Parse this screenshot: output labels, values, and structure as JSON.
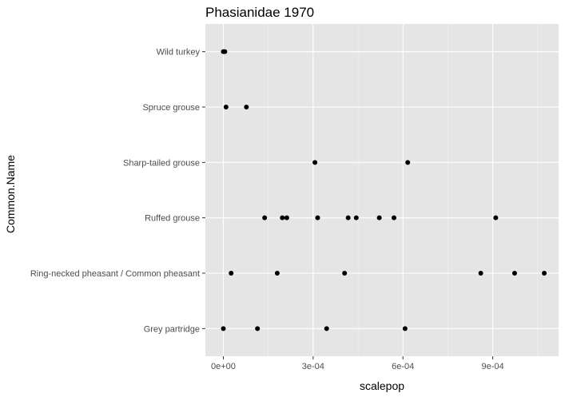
{
  "chart_data": {
    "type": "scatter",
    "title": "Phasianidae 1970",
    "xlabel": "scalepop",
    "ylabel": "Common.Name",
    "xlim": [
      -6e-05,
      0.00112
    ],
    "x_ticks": [
      0,
      0.0003,
      0.0006,
      0.0009
    ],
    "x_tick_labels": [
      "0e+00",
      "3e-04",
      "6e-04",
      "9e-04"
    ],
    "categories": [
      "Wild turkey",
      "Spruce grouse",
      "Sharp-tailed grouse",
      "Ruffed grouse",
      "Ring-necked pheasant / Common pheasant",
      "Grey partridge"
    ],
    "grid": true,
    "panel_color": "#e5e5e5",
    "point_color": "#000000",
    "points": [
      {
        "category": "Wild turkey",
        "x": 0.0
      },
      {
        "category": "Wild turkey",
        "x": 5e-06
      },
      {
        "category": "Spruce grouse",
        "x": 9e-06
      },
      {
        "category": "Spruce grouse",
        "x": 7.7e-05
      },
      {
        "category": "Sharp-tailed grouse",
        "x": 0.000306
      },
      {
        "category": "Sharp-tailed grouse",
        "x": 0.000616
      },
      {
        "category": "Ruffed grouse",
        "x": 0.000138
      },
      {
        "category": "Ruffed grouse",
        "x": 0.000197
      },
      {
        "category": "Ruffed grouse",
        "x": 0.000212
      },
      {
        "category": "Ruffed grouse",
        "x": 0.000315
      },
      {
        "category": "Ruffed grouse",
        "x": 0.000417
      },
      {
        "category": "Ruffed grouse",
        "x": 0.000444
      },
      {
        "category": "Ruffed grouse",
        "x": 0.000521
      },
      {
        "category": "Ruffed grouse",
        "x": 0.00057
      },
      {
        "category": "Ruffed grouse",
        "x": 0.00091
      },
      {
        "category": "Ring-necked pheasant / Common pheasant",
        "x": 2.6e-05
      },
      {
        "category": "Ring-necked pheasant / Common pheasant",
        "x": 0.00018
      },
      {
        "category": "Ring-necked pheasant / Common pheasant",
        "x": 0.000405
      },
      {
        "category": "Ring-necked pheasant / Common pheasant",
        "x": 0.00086
      },
      {
        "category": "Ring-necked pheasant / Common pheasant",
        "x": 0.000973
      },
      {
        "category": "Ring-necked pheasant / Common pheasant",
        "x": 0.001072
      },
      {
        "category": "Grey partridge",
        "x": 0.0
      },
      {
        "category": "Grey partridge",
        "x": 0.000114
      },
      {
        "category": "Grey partridge",
        "x": 0.000345
      },
      {
        "category": "Grey partridge",
        "x": 0.000607
      }
    ]
  }
}
